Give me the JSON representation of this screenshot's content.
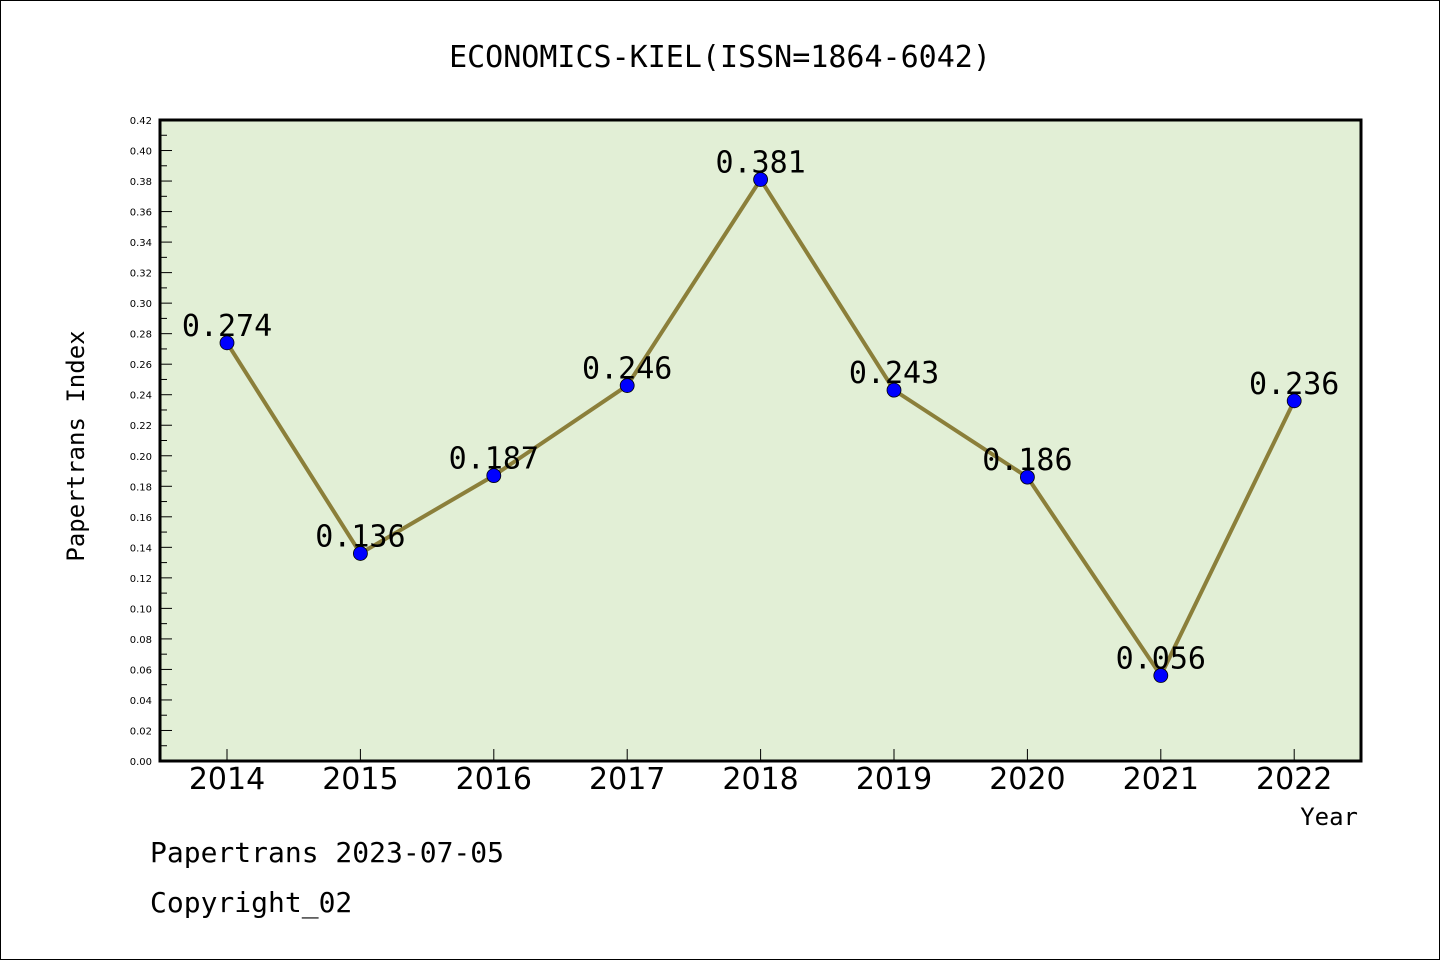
{
  "chart_data": {
    "type": "line",
    "title": "ECONOMICS-KIEL(ISSN=1864-6042)",
    "xlabel": "Year",
    "ylabel": "Papertrans Index",
    "categories": [
      "2014",
      "2015",
      "2016",
      "2017",
      "2018",
      "2019",
      "2020",
      "2021",
      "2022"
    ],
    "series": [
      {
        "values": [
          0.274,
          0.136,
          0.187,
          0.246,
          0.381,
          0.243,
          0.186,
          0.056,
          0.236
        ],
        "labels": [
          "0.274",
          "0.136",
          "0.187",
          "0.246",
          "0.381",
          "0.243",
          "0.186",
          "0.056",
          "0.236"
        ]
      }
    ],
    "ylim": [
      0,
      0.42
    ],
    "yticks": [
      "0.00",
      "0.02",
      "0.04",
      "0.06",
      "0.08",
      "0.10",
      "0.12",
      "0.14",
      "0.16",
      "0.18",
      "0.20",
      "0.22",
      "0.24",
      "0.26",
      "0.28",
      "0.30",
      "0.32",
      "0.34",
      "0.36",
      "0.38",
      "0.40",
      "0.42"
    ],
    "grid": false,
    "legend": "none",
    "colors": {
      "plot_background": "#e2efd6",
      "line": "#8b7f3a",
      "marker": "#0000ff"
    }
  },
  "footer": {
    "line1": "Papertrans 2023-07-05",
    "line2": "Copyright_02"
  }
}
